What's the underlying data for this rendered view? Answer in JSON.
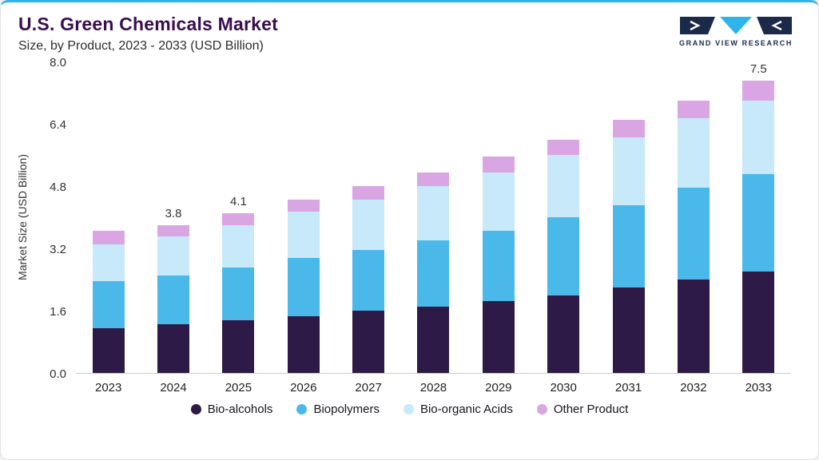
{
  "header": {
    "title": "U.S. Green Chemicals Market",
    "subtitle": "Size, by Product, 2023 - 2033 (USD Billion)",
    "logo_text": "GRAND VIEW RESEARCH"
  },
  "colors": {
    "accent": "#2fb4e9",
    "title_color": "#3a0d4f",
    "logo_navy": "#1b2a4a",
    "logo_cyan": "#2fb4e9"
  },
  "chart_data": {
    "type": "bar",
    "stacked": true,
    "title": "U.S. Green Chemicals Market",
    "subtitle": "Size, by Product, 2023 - 2033 (USD Billion)",
    "xlabel": "",
    "ylabel": "Market Size (USD Billion)",
    "ylim": [
      0,
      8.0
    ],
    "yticks": [
      0.0,
      1.6,
      3.2,
      4.8,
      6.4,
      8.0
    ],
    "grid": false,
    "legend_position": "bottom",
    "categories": [
      "2023",
      "2024",
      "2025",
      "2026",
      "2027",
      "2028",
      "2029",
      "2030",
      "2031",
      "2032",
      "2033"
    ],
    "series": [
      {
        "name": "Bio-alcohols",
        "color": "#2e1a47",
        "values": [
          1.15,
          1.25,
          1.35,
          1.45,
          1.6,
          1.7,
          1.85,
          2.0,
          2.2,
          2.4,
          2.6
        ]
      },
      {
        "name": "Biopolymers",
        "color": "#4ab9e9",
        "values": [
          1.2,
          1.25,
          1.35,
          1.5,
          1.55,
          1.7,
          1.8,
          2.0,
          2.1,
          2.35,
          2.5
        ]
      },
      {
        "name": "Bio-organic Acids",
        "color": "#c7e9fa",
        "values": [
          0.95,
          1.0,
          1.1,
          1.2,
          1.3,
          1.4,
          1.5,
          1.6,
          1.75,
          1.8,
          1.9
        ]
      },
      {
        "name": "Other Product",
        "color": "#d9a6e3",
        "values": [
          0.35,
          0.3,
          0.3,
          0.3,
          0.35,
          0.35,
          0.4,
          0.4,
          0.45,
          0.45,
          0.5
        ]
      }
    ],
    "total_labels": [
      "",
      "3.8",
      "4.1",
      "",
      "",
      "",
      "",
      "",
      "",
      "",
      "7.5"
    ]
  }
}
